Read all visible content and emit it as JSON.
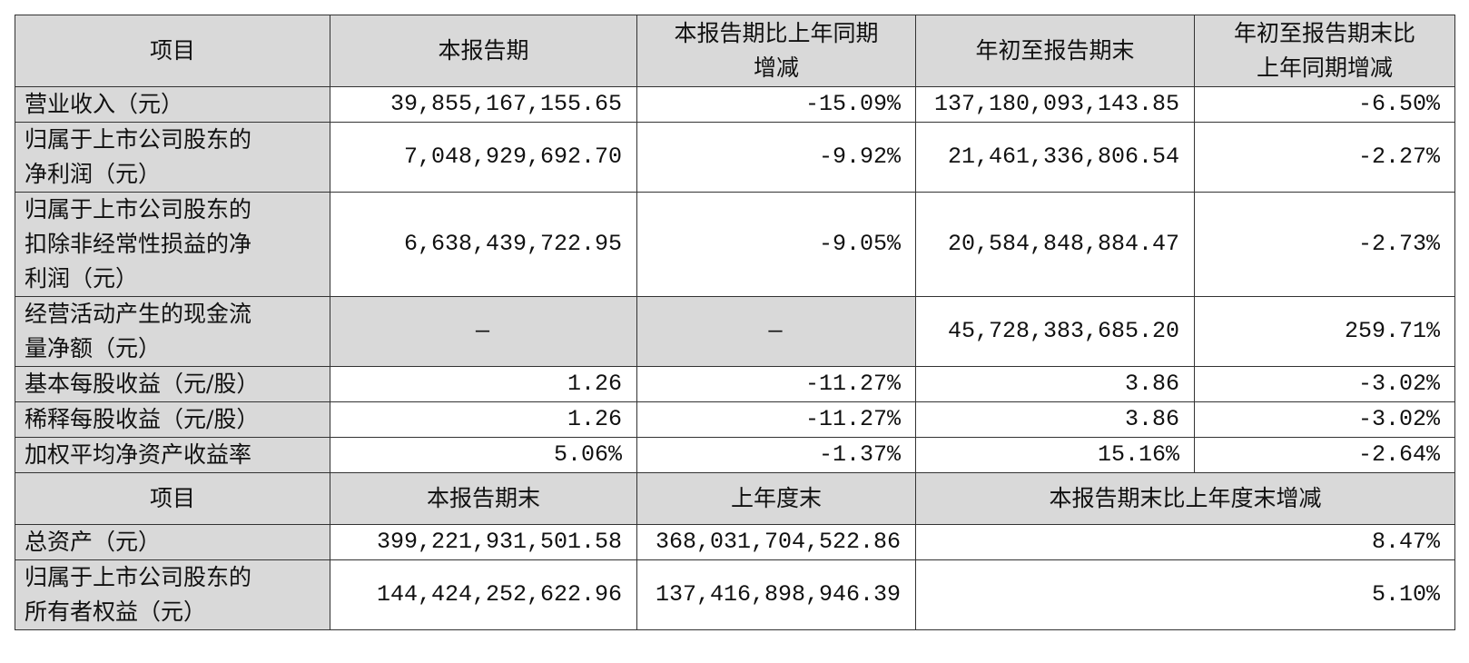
{
  "table": {
    "header": [
      "项目",
      "本报告期",
      "本报告期比上年同期\n增减",
      "年初至报告期末",
      "年初至报告期末比\n上年同期增减"
    ],
    "rows": [
      [
        "营业收入（元）",
        "39,855,167,155.65",
        "-15.09%",
        "137,180,093,143.85",
        "-6.50%"
      ],
      [
        "归属于上市公司股东的\n净利润（元）",
        "7,048,929,692.70",
        "-9.92%",
        "21,461,336,806.54",
        "-2.27%"
      ],
      [
        "归属于上市公司股东的\n扣除非经常性损益的净\n利润（元）",
        "6,638,439,722.95",
        "-9.05%",
        "20,584,848,884.47",
        "-2.73%"
      ],
      [
        "经营活动产生的现金流\n量净额（元）",
        "—",
        "—",
        "45,728,383,685.20",
        "259.71%"
      ],
      [
        "基本每股收益（元/股）",
        "1.26",
        "-11.27%",
        "3.86",
        "-3.02%"
      ],
      [
        "稀释每股收益（元/股）",
        "1.26",
        "-11.27%",
        "3.86",
        "-3.02%"
      ],
      [
        "加权平均净资产收益率",
        "5.06%",
        "-1.37%",
        "15.16%",
        "-2.64%"
      ]
    ],
    "header2": [
      "项目",
      "本报告期末",
      "上年度末",
      "本报告期末比上年度末增减"
    ],
    "rows2": [
      [
        "总资产（元）",
        "399,221,931,501.58",
        "368,031,704,522.86",
        "8.47%"
      ],
      [
        "归属于上市公司股东的\n所有者权益（元）",
        "144,424,252,622.96",
        "137,416,898,946.39",
        "5.10%"
      ]
    ]
  }
}
